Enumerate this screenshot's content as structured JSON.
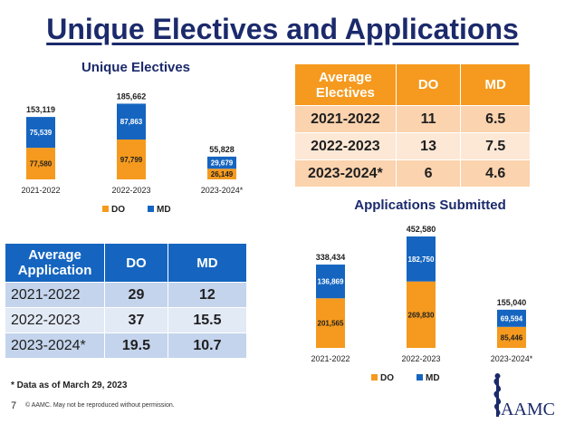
{
  "page_title": "Unique Electives and Applications",
  "colors": {
    "do": "#f59a1e",
    "md": "#1565c0",
    "navy": "#1b2a6b"
  },
  "chart_data": [
    {
      "id": "unique-electives",
      "type": "bar",
      "stacked": true,
      "title": "Unique Electives",
      "categories": [
        "2021-2022",
        "2022-2023",
        "2023-2024*"
      ],
      "series": [
        {
          "name": "DO",
          "values": [
            77580,
            97799,
            26149
          ],
          "labels": [
            "77,580",
            "97,799",
            "26,149"
          ]
        },
        {
          "name": "MD",
          "values": [
            75539,
            87863,
            29679
          ],
          "labels": [
            "75,539",
            "87,863",
            "29,679"
          ]
        }
      ],
      "totals": [
        "153,119",
        "185,662",
        "55,828"
      ],
      "ylim": [
        0,
        200000
      ],
      "legend": [
        "DO",
        "MD"
      ]
    },
    {
      "id": "applications-submitted",
      "type": "bar",
      "stacked": true,
      "title": "Applications Submitted",
      "categories": [
        "2021-2022",
        "2022-2023",
        "2023-2024*"
      ],
      "series": [
        {
          "name": "DO",
          "values": [
            201565,
            269830,
            85446
          ],
          "labels": [
            "201,565",
            "269,830",
            "85,446"
          ]
        },
        {
          "name": "MD",
          "values": [
            136869,
            182750,
            69594
          ],
          "labels": [
            "136,869",
            "182,750",
            "69,594"
          ]
        }
      ],
      "totals": [
        "338,434",
        "452,580",
        "155,040"
      ],
      "ylim": [
        0,
        460000
      ],
      "legend": [
        "DO",
        "MD"
      ]
    }
  ],
  "electives_table": {
    "headers": [
      "Average Electives",
      "DO",
      "MD"
    ],
    "rows": [
      [
        "2021-2022",
        "11",
        "6.5"
      ],
      [
        "2022-2023",
        "13",
        "7.5"
      ],
      [
        "2023-2024*",
        "6",
        "4.6"
      ]
    ]
  },
  "application_table": {
    "headers": [
      "Average Application",
      "DO",
      "MD"
    ],
    "rows": [
      [
        "2021-2022",
        "29",
        "12"
      ],
      [
        "2022-2023",
        "37",
        "15.5"
      ],
      [
        "2023-2024*",
        "19.5",
        "10.7"
      ]
    ]
  },
  "footnote": "* Data as of March 29, 2023",
  "page_number": "7",
  "copyright": "© AAMC. May not be reproduced without permission.",
  "logo_text": "AAMC"
}
